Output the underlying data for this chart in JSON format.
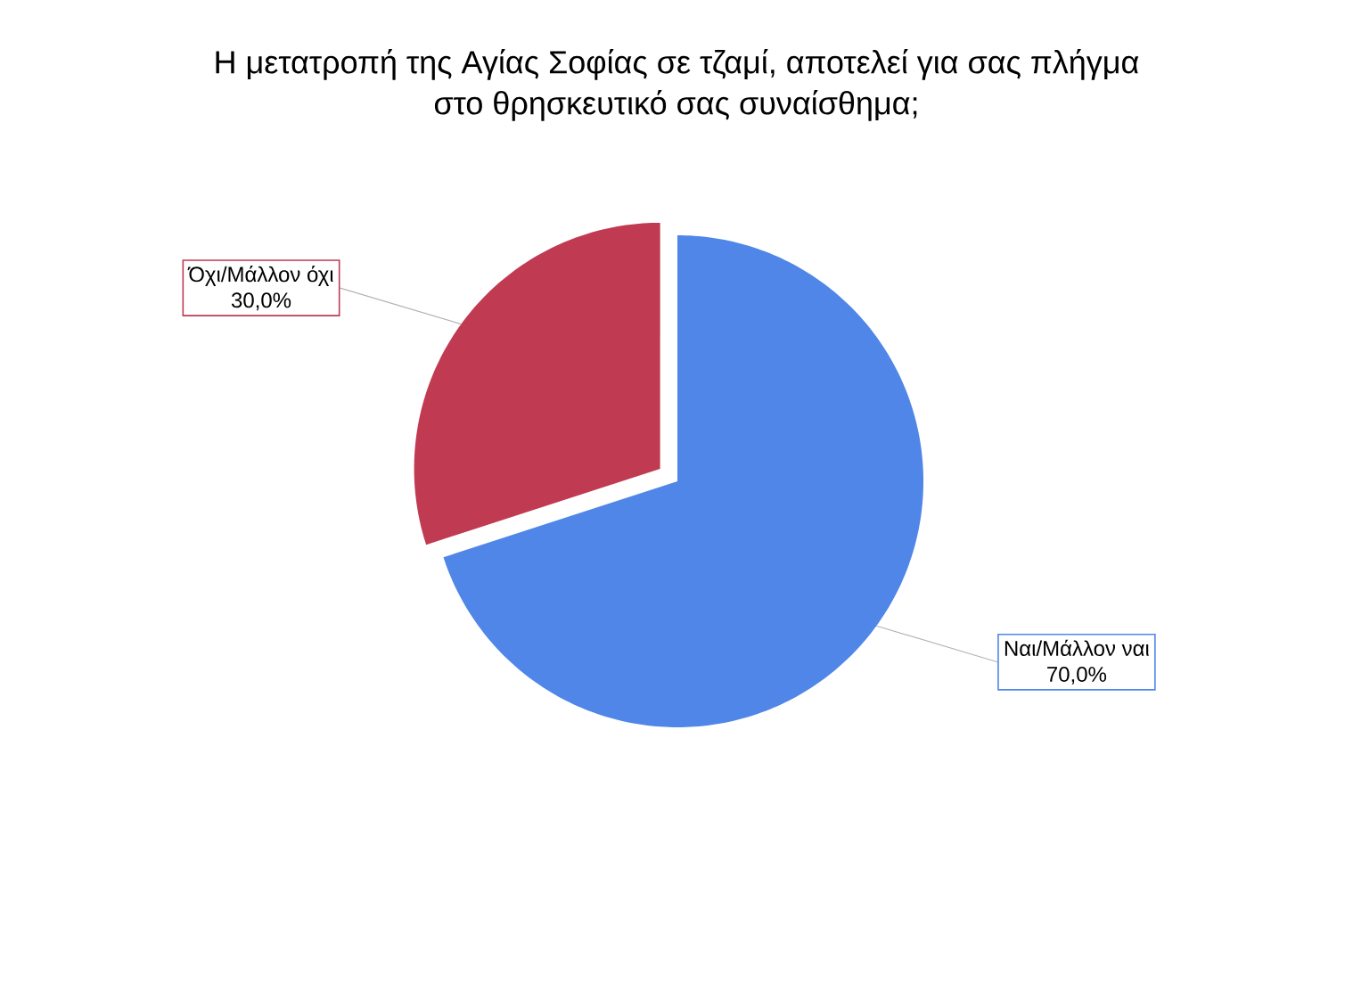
{
  "chart_data": {
    "type": "pie",
    "title": "Η μετατροπή της Αγίας Σοφίας σε τζαμί, αποτελεί για σας πλήγμα στο θρησκευτικό σας συναίσθημα;",
    "categories": [
      "Ναι/Μάλλον ναι",
      "Όχι/Μάλλον όχι"
    ],
    "values": [
      70,
      30
    ],
    "colors": [
      "#4f86e8",
      "#c03a52"
    ],
    "value_labels": [
      "70,0%",
      "30,0%"
    ]
  }
}
